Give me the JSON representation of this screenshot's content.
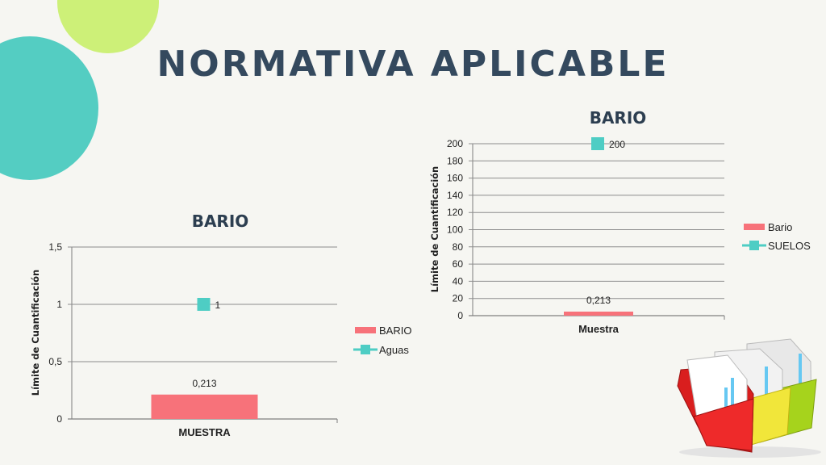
{
  "slide": {
    "title": "NORMATIVA APLICABLE",
    "colors": {
      "title": "#34495e",
      "lime": "#cdf078",
      "teal": "#54cdc2",
      "bar": "#f7727a",
      "marker": "#4ecdc4"
    }
  },
  "chart_data": [
    {
      "type": "bar",
      "title": "BARIO",
      "ylabel": "Límite de Cuantificación",
      "categories": [
        "MUESTRA"
      ],
      "ylim": [
        0,
        1.5
      ],
      "yticks": [
        0,
        0.5,
        1,
        1.5
      ],
      "ytick_labels": [
        "0",
        "0,5",
        "1",
        "1,5"
      ],
      "grid": true,
      "legend_position": "right",
      "series": [
        {
          "name": "BARIO",
          "kind": "bar",
          "values": [
            0.213
          ],
          "value_labels": [
            "0,213"
          ],
          "color": "#f7727a"
        },
        {
          "name": "Aguas",
          "kind": "line-marker",
          "values": [
            1
          ],
          "value_labels": [
            "1"
          ],
          "color": "#4ecdc4"
        }
      ]
    },
    {
      "type": "bar",
      "title": "BARIO",
      "ylabel": "Límite de Cuantificación",
      "categories": [
        "Muestra"
      ],
      "ylim": [
        0,
        200
      ],
      "yticks": [
        0,
        20,
        40,
        60,
        80,
        100,
        120,
        140,
        160,
        180,
        200
      ],
      "ytick_labels": [
        "0",
        "20",
        "40",
        "60",
        "80",
        "100",
        "120",
        "140",
        "160",
        "180",
        "200"
      ],
      "grid": true,
      "legend_position": "right",
      "series": [
        {
          "name": "Bario",
          "kind": "bar",
          "values": [
            0.213
          ],
          "value_labels": [
            "0,213"
          ],
          "color": "#f7727a"
        },
        {
          "name": "SUELOS",
          "kind": "line-marker",
          "values": [
            200
          ],
          "value_labels": [
            "200"
          ],
          "color": "#4ecdc4"
        }
      ]
    }
  ],
  "decoration": {
    "icon": "folders-chart-icon"
  }
}
